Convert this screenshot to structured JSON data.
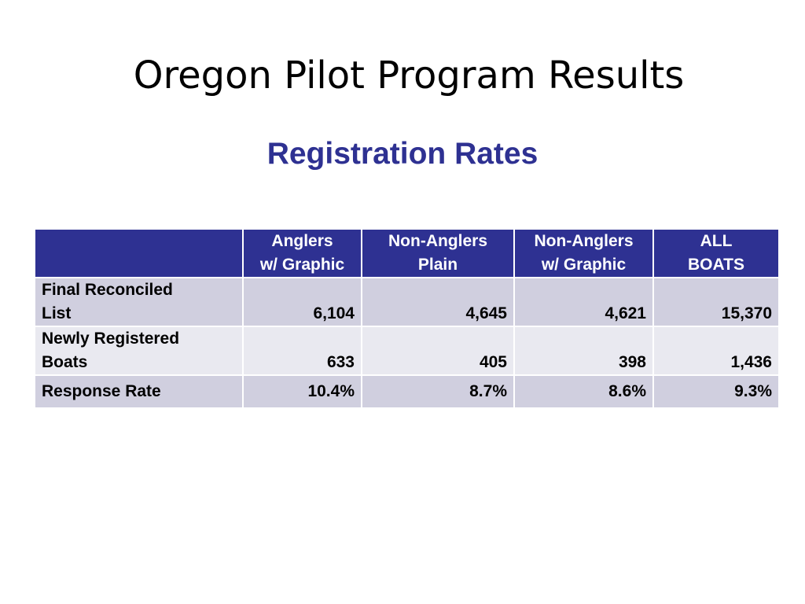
{
  "slide": {
    "title": "Oregon Pilot Program Results",
    "subtitle": "Registration Rates"
  },
  "table": {
    "headers": [
      {
        "line1": "",
        "line2": ""
      },
      {
        "line1": "Anglers",
        "line2": "w/ Graphic"
      },
      {
        "line1": "Non-Anglers",
        "line2": "Plain"
      },
      {
        "line1": "Non-Anglers",
        "line2": "w/ Graphic"
      },
      {
        "line1": "ALL",
        "line2": "BOATS"
      }
    ],
    "rows": [
      {
        "label_line1": "Final Reconciled",
        "label_line2": "List",
        "values": [
          "6,104",
          "4,645",
          "4,621",
          "15,370"
        ]
      },
      {
        "label_line1": "Newly Registered",
        "label_line2": "Boats",
        "values": [
          "633",
          "405",
          "398",
          "1,436"
        ]
      },
      {
        "label_line1": "Response Rate",
        "label_line2": "",
        "values": [
          "10.4%",
          "8.7%",
          "8.6%",
          "9.3%"
        ]
      }
    ],
    "colors": {
      "header_bg": "#2e3192",
      "row_dark": "#d0cfdf",
      "row_light": "#e9e9f0"
    }
  }
}
